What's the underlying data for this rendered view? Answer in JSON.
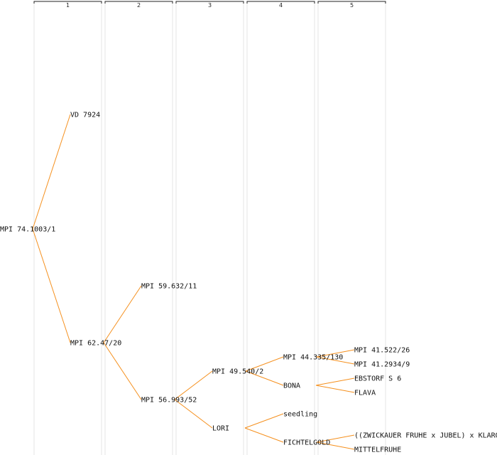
{
  "generations": [
    "1",
    "2",
    "3",
    "4",
    "5"
  ],
  "nodes": [
    {
      "id": "n1",
      "label": "MPI 74.1003/1"
    },
    {
      "id": "n2",
      "label": "VD 7924"
    },
    {
      "id": "n3",
      "label": "MPI 62.47/20"
    },
    {
      "id": "n4",
      "label": "MPI 59.632/11"
    },
    {
      "id": "n5",
      "label": "MPI 56.993/52"
    },
    {
      "id": "n6",
      "label": "MPI 49.540/2"
    },
    {
      "id": "n7",
      "label": "LORI"
    },
    {
      "id": "n8",
      "label": "MPI 44.335/130"
    },
    {
      "id": "n9",
      "label": "BONA"
    },
    {
      "id": "n10",
      "label": "seedling"
    },
    {
      "id": "n11",
      "label": "FICHTELGOLD"
    },
    {
      "id": "n12",
      "label": "MPI 41.522/26"
    },
    {
      "id": "n13",
      "label": "MPI 41.2934/9"
    },
    {
      "id": "n14",
      "label": "EBSTORF S 6"
    },
    {
      "id": "n15",
      "label": "FLAVA"
    },
    {
      "id": "n16",
      "label": "((ZWICKAUER FRUHE x JUBEL) x KLARO"
    },
    {
      "id": "n17",
      "label": "MITTELFRUHE"
    }
  ],
  "edges": [
    [
      "n1",
      "n2"
    ],
    [
      "n1",
      "n3"
    ],
    [
      "n3",
      "n4"
    ],
    [
      "n3",
      "n5"
    ],
    [
      "n5",
      "n6"
    ],
    [
      "n5",
      "n7"
    ],
    [
      "n6",
      "n8"
    ],
    [
      "n6",
      "n9"
    ],
    [
      "n7",
      "n10"
    ],
    [
      "n7",
      "n11"
    ],
    [
      "n8",
      "n12"
    ],
    [
      "n8",
      "n13"
    ],
    [
      "n9",
      "n14"
    ],
    [
      "n9",
      "n15"
    ],
    [
      "n11",
      "n16"
    ],
    [
      "n11",
      "n17"
    ]
  ],
  "colors": {
    "edge": "#f5901e",
    "text": "#111111"
  }
}
